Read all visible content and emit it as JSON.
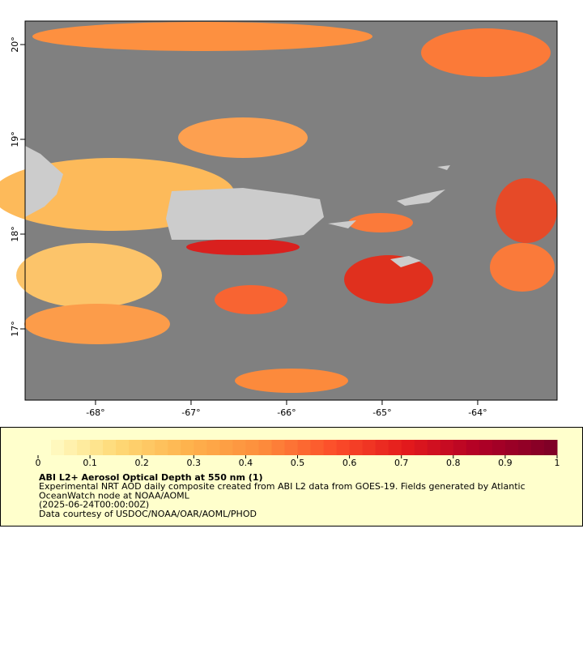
{
  "map": {
    "xlim": [
      -68.737,
      -63.169
    ],
    "ylim": [
      16.248,
      20.248
    ],
    "xticks": [
      {
        "value": -68,
        "label": "-68°"
      },
      {
        "value": -67,
        "label": "-67°"
      },
      {
        "value": -66,
        "label": "-66°"
      },
      {
        "value": -65,
        "label": "-65°"
      },
      {
        "value": -64,
        "label": "-64°"
      }
    ],
    "yticks": [
      {
        "value": 17,
        "label": "17°"
      },
      {
        "value": 18,
        "label": "18°"
      },
      {
        "value": 19,
        "label": "19°"
      },
      {
        "value": 20,
        "label": "20°"
      }
    ]
  },
  "colorbar": {
    "range": [
      0,
      1
    ],
    "ticks": [
      0,
      0.1,
      0.2,
      0.3,
      0.4,
      0.5,
      0.6,
      0.7,
      0.8,
      0.9,
      1
    ],
    "colors": [
      "#ffffcc",
      "#fed976",
      "#feb24c",
      "#fd8d3c",
      "#fc4e2a",
      "#e31a1c",
      "#b10026",
      "#800026"
    ]
  },
  "legend": {
    "title": "ABI L2+ Aerosol Optical Depth at 550 nm (1)",
    "lines": [
      "Experimental NRT AOD daily composite created from ABI L2 data from GOES-19. Fields generated by Atlantic",
      "OceanWatch node at NOAA/AOML",
      "(2025-06-24T00:00:00Z)",
      "Data courtesy of USDOC/NOAA/OAR/AOML/PHOD"
    ]
  }
}
